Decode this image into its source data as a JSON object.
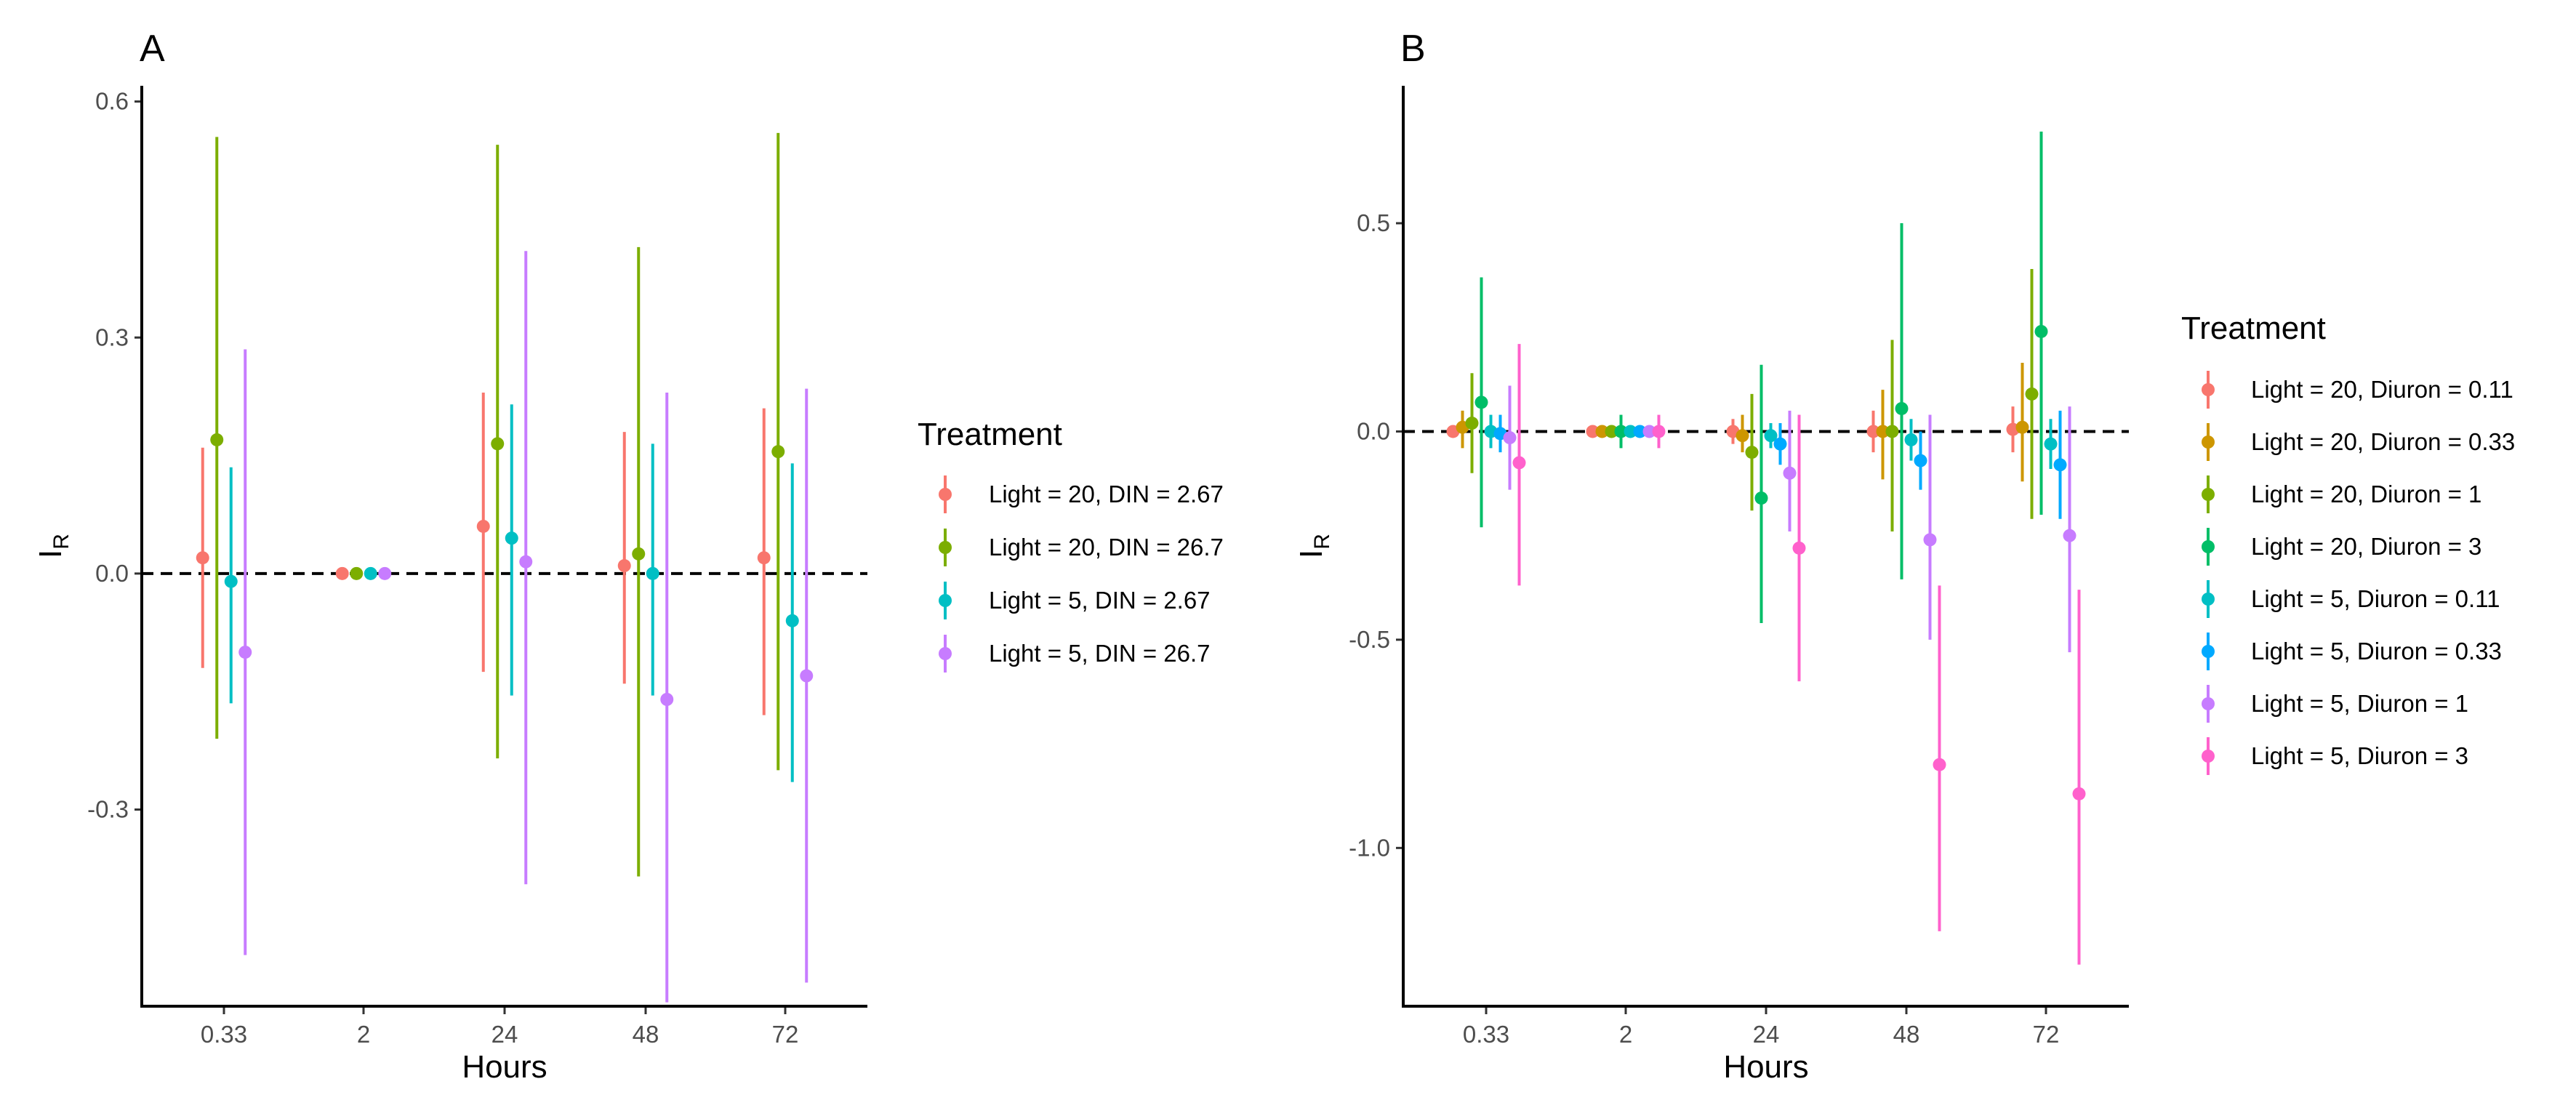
{
  "chart_data": [
    {
      "type": "scatter",
      "tag": "A",
      "xlabel": "Hours",
      "ylabel": "I",
      "ylabel_sub": "R",
      "categories": [
        "0.33",
        "2",
        "24",
        "48",
        "72"
      ],
      "ylim": [
        -0.55,
        0.62
      ],
      "yticks": [
        0.6,
        0.3,
        0.0,
        -0.3
      ],
      "ytick_labels": [
        "0.6",
        "0.3",
        "0.0",
        "-0.3"
      ],
      "reference_line_y": 0,
      "grid": false,
      "legend_title": "Treatment",
      "legend_position": "right",
      "series": [
        {
          "name": "Light = 20, DIN = 2.67",
          "color": "#F8766D",
          "points": [
            {
              "x": "0.33",
              "y": 0.02,
              "lo": -0.12,
              "hi": 0.16
            },
            {
              "x": "2",
              "y": 0.0,
              "lo": 0.0,
              "hi": 0.0
            },
            {
              "x": "24",
              "y": 0.06,
              "lo": -0.125,
              "hi": 0.23
            },
            {
              "x": "48",
              "y": 0.01,
              "lo": -0.14,
              "hi": 0.18
            },
            {
              "x": "72",
              "y": 0.02,
              "lo": -0.18,
              "hi": 0.21
            }
          ]
        },
        {
          "name": "Light = 20, DIN = 26.7",
          "color": "#7CAE00",
          "points": [
            {
              "x": "0.33",
              "y": 0.17,
              "lo": -0.21,
              "hi": 0.555
            },
            {
              "x": "2",
              "y": 0.0,
              "lo": 0.0,
              "hi": 0.0
            },
            {
              "x": "24",
              "y": 0.165,
              "lo": -0.235,
              "hi": 0.545
            },
            {
              "x": "48",
              "y": 0.025,
              "lo": -0.385,
              "hi": 0.415
            },
            {
              "x": "72",
              "y": 0.155,
              "lo": -0.25,
              "hi": 0.56
            }
          ]
        },
        {
          "name": "Light = 5, DIN = 2.67",
          "color": "#00BFC4",
          "points": [
            {
              "x": "0.33",
              "y": -0.01,
              "lo": -0.165,
              "hi": 0.135
            },
            {
              "x": "2",
              "y": 0.0,
              "lo": 0.0,
              "hi": 0.0
            },
            {
              "x": "24",
              "y": 0.045,
              "lo": -0.155,
              "hi": 0.215
            },
            {
              "x": "48",
              "y": 0.0,
              "lo": -0.155,
              "hi": 0.165
            },
            {
              "x": "72",
              "y": -0.06,
              "lo": -0.265,
              "hi": 0.14
            }
          ]
        },
        {
          "name": "Light = 5, DIN = 26.7",
          "color": "#C77CFF",
          "points": [
            {
              "x": "0.33",
              "y": -0.1,
              "lo": -0.485,
              "hi": 0.285
            },
            {
              "x": "2",
              "y": 0.0,
              "lo": 0.0,
              "hi": 0.0
            },
            {
              "x": "24",
              "y": 0.015,
              "lo": -0.395,
              "hi": 0.41
            },
            {
              "x": "48",
              "y": -0.16,
              "lo": -0.545,
              "hi": 0.23
            },
            {
              "x": "72",
              "y": -0.13,
              "lo": -0.52,
              "hi": 0.235
            }
          ]
        }
      ]
    },
    {
      "type": "scatter",
      "tag": "B",
      "xlabel": "Hours",
      "ylabel": "I",
      "ylabel_sub": "R",
      "categories": [
        "0.33",
        "2",
        "24",
        "48",
        "72"
      ],
      "ylim": [
        -1.38,
        0.83
      ],
      "yticks": [
        0.5,
        0.0,
        -0.5,
        -1.0
      ],
      "ytick_labels": [
        "0.5",
        "0.0",
        "-0.5",
        "-1.0"
      ],
      "reference_line_y": 0,
      "grid": false,
      "legend_title": "Treatment",
      "legend_position": "right",
      "series": [
        {
          "name": "Light = 20, Diuron = 0.11",
          "color": "#F8766D",
          "points": [
            {
              "x": "0.33",
              "y": 0.0,
              "lo": -0.01,
              "hi": 0.01
            },
            {
              "x": "2",
              "y": 0.0,
              "lo": 0.0,
              "hi": 0.0
            },
            {
              "x": "24",
              "y": 0.0,
              "lo": -0.03,
              "hi": 0.03
            },
            {
              "x": "48",
              "y": 0.0,
              "lo": -0.05,
              "hi": 0.05
            },
            {
              "x": "72",
              "y": 0.005,
              "lo": -0.05,
              "hi": 0.06
            }
          ]
        },
        {
          "name": "Light = 20, Diuron = 0.33",
          "color": "#CD9600",
          "points": [
            {
              "x": "0.33",
              "y": 0.01,
              "lo": -0.04,
              "hi": 0.05
            },
            {
              "x": "2",
              "y": 0.0,
              "lo": 0.0,
              "hi": 0.0
            },
            {
              "x": "24",
              "y": -0.01,
              "lo": -0.05,
              "hi": 0.04
            },
            {
              "x": "48",
              "y": 0.0,
              "lo": -0.115,
              "hi": 0.1
            },
            {
              "x": "72",
              "y": 0.01,
              "lo": -0.12,
              "hi": 0.165
            }
          ]
        },
        {
          "name": "Light = 20, Diuron = 1",
          "color": "#7CAE00",
          "points": [
            {
              "x": "0.33",
              "y": 0.02,
              "lo": -0.1,
              "hi": 0.14
            },
            {
              "x": "2",
              "y": 0.0,
              "lo": 0.0,
              "hi": 0.0
            },
            {
              "x": "24",
              "y": -0.05,
              "lo": -0.19,
              "hi": 0.09
            },
            {
              "x": "48",
              "y": 0.0,
              "lo": -0.24,
              "hi": 0.22
            },
            {
              "x": "72",
              "y": 0.09,
              "lo": -0.21,
              "hi": 0.39
            }
          ]
        },
        {
          "name": "Light = 20, Diuron = 3",
          "color": "#00BE67",
          "points": [
            {
              "x": "0.33",
              "y": 0.07,
              "lo": -0.23,
              "hi": 0.37
            },
            {
              "x": "2",
              "y": 0.0,
              "lo": -0.04,
              "hi": 0.04
            },
            {
              "x": "24",
              "y": -0.16,
              "lo": -0.46,
              "hi": 0.16
            },
            {
              "x": "48",
              "y": 0.055,
              "lo": -0.355,
              "hi": 0.5
            },
            {
              "x": "72",
              "y": 0.24,
              "lo": -0.2,
              "hi": 0.72
            }
          ]
        },
        {
          "name": "Light = 5, Diuron = 0.11",
          "color": "#00BFC4",
          "points": [
            {
              "x": "0.33",
              "y": 0.0,
              "lo": -0.04,
              "hi": 0.04
            },
            {
              "x": "2",
              "y": 0.0,
              "lo": 0.0,
              "hi": 0.0
            },
            {
              "x": "24",
              "y": -0.01,
              "lo": -0.04,
              "hi": 0.02
            },
            {
              "x": "48",
              "y": -0.02,
              "lo": -0.07,
              "hi": 0.03
            },
            {
              "x": "72",
              "y": -0.03,
              "lo": -0.09,
              "hi": 0.03
            }
          ]
        },
        {
          "name": "Light = 5, Diuron = 0.33",
          "color": "#00A9FF",
          "points": [
            {
              "x": "0.33",
              "y": -0.005,
              "lo": -0.05,
              "hi": 0.04
            },
            {
              "x": "2",
              "y": 0.0,
              "lo": 0.0,
              "hi": 0.0
            },
            {
              "x": "24",
              "y": -0.03,
              "lo": -0.08,
              "hi": 0.02
            },
            {
              "x": "48",
              "y": -0.07,
              "lo": -0.14,
              "hi": 0.0
            },
            {
              "x": "72",
              "y": -0.08,
              "lo": -0.21,
              "hi": 0.05
            }
          ]
        },
        {
          "name": "Light = 5, Diuron = 1",
          "color": "#C77CFF",
          "points": [
            {
              "x": "0.33",
              "y": -0.015,
              "lo": -0.14,
              "hi": 0.11
            },
            {
              "x": "2",
              "y": 0.0,
              "lo": 0.0,
              "hi": 0.0
            },
            {
              "x": "24",
              "y": -0.1,
              "lo": -0.24,
              "hi": 0.05
            },
            {
              "x": "48",
              "y": -0.26,
              "lo": -0.5,
              "hi": 0.04
            },
            {
              "x": "72",
              "y": -0.25,
              "lo": -0.53,
              "hi": 0.06
            }
          ]
        },
        {
          "name": "Light = 5, Diuron = 3",
          "color": "#FF61CC",
          "points": [
            {
              "x": "0.33",
              "y": -0.075,
              "lo": -0.37,
              "hi": 0.21
            },
            {
              "x": "2",
              "y": 0.0,
              "lo": -0.04,
              "hi": 0.04
            },
            {
              "x": "24",
              "y": -0.28,
              "lo": -0.6,
              "hi": 0.04
            },
            {
              "x": "48",
              "y": -0.8,
              "lo": -1.2,
              "hi": -0.37
            },
            {
              "x": "72",
              "y": -0.87,
              "lo": -1.28,
              "hi": -0.38
            }
          ]
        }
      ]
    }
  ]
}
